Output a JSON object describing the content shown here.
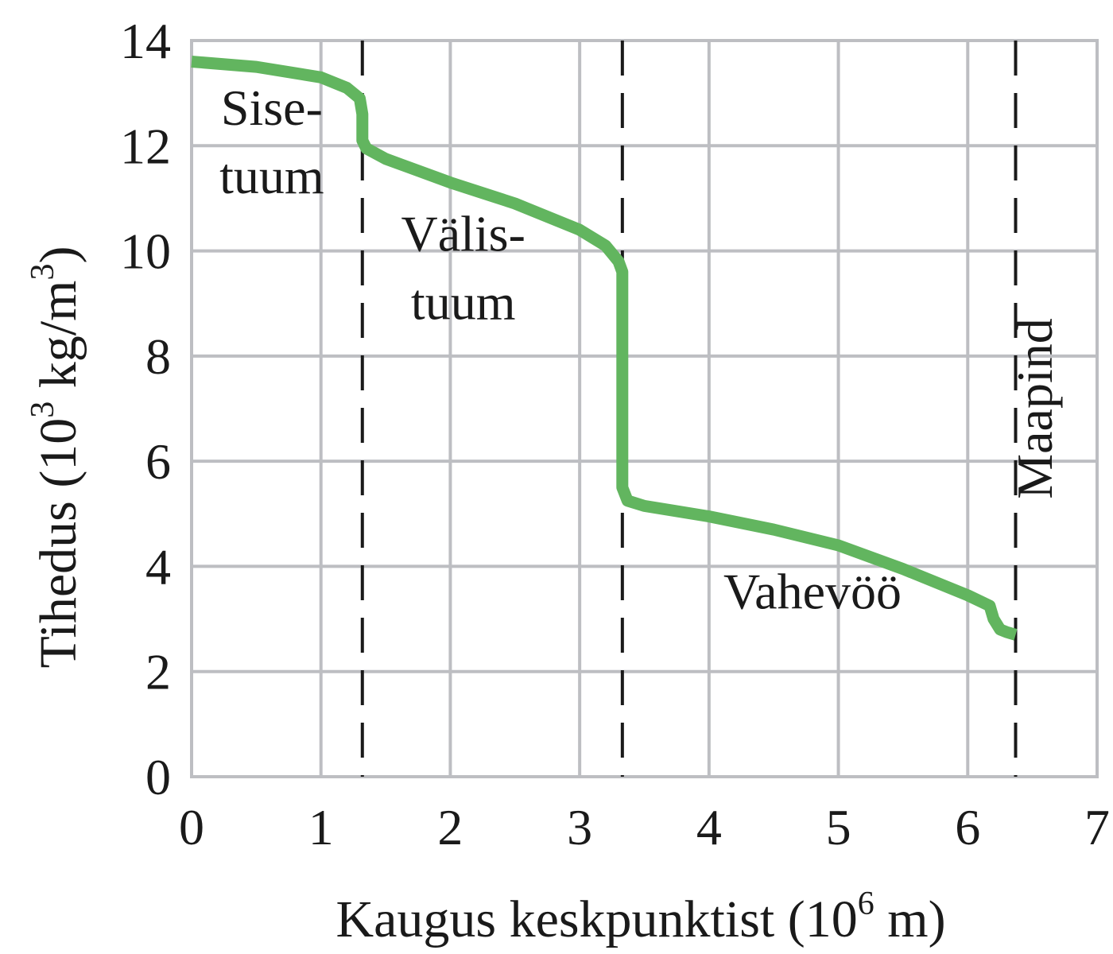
{
  "chart_data": {
    "type": "line",
    "title": "",
    "xlabel": "Kaugus keskpunktist (10^6 m)",
    "xlabel_parts": {
      "main": "Kaugus keskpunktist (10",
      "sup": "6",
      "tail": " m)"
    },
    "ylabel": "Tihedus (10^3 kg/m^3)",
    "ylabel_parts": {
      "main": "Tihedus  (10",
      "sup1": "3",
      "mid": " kg/m",
      "sup2": "3",
      "tail": ")"
    },
    "xlim": [
      0,
      7
    ],
    "ylim": [
      0,
      14
    ],
    "xticks": [
      "0",
      "1",
      "2",
      "3",
      "4",
      "5",
      "6",
      "7"
    ],
    "yticks": [
      "0",
      "2",
      "4",
      "6",
      "8",
      "10",
      "12",
      "14"
    ],
    "grid": true,
    "series": [
      {
        "name": "Tihedus",
        "color": "#62b55f",
        "x": [
          0,
          0.5,
          1.0,
          1.2,
          1.3,
          1.32,
          1.32,
          1.35,
          1.5,
          2.0,
          2.5,
          3.0,
          3.2,
          3.3,
          3.33,
          3.33,
          3.37,
          3.5,
          4.0,
          4.5,
          5.0,
          5.5,
          6.0,
          6.17,
          6.2,
          6.25,
          6.3,
          6.37
        ],
        "values": [
          13.6,
          13.5,
          13.3,
          13.1,
          12.9,
          12.6,
          12.1,
          11.95,
          11.75,
          11.3,
          10.9,
          10.4,
          10.1,
          9.8,
          9.6,
          5.5,
          5.25,
          5.15,
          4.95,
          4.7,
          4.4,
          3.95,
          3.45,
          3.25,
          3.0,
          2.8,
          2.75,
          2.7
        ]
      }
    ],
    "boundaries": [
      {
        "x": 1.32,
        "style": "dashed",
        "color": "#1a1a1a"
      },
      {
        "x": 3.33,
        "style": "dashed",
        "color": "#1a1a1a"
      },
      {
        "x": 6.37,
        "style": "dashed",
        "color": "#1a1a1a"
      }
    ],
    "annotations": [
      {
        "text": "Sise-",
        "x": 0.62,
        "y": 12.4
      },
      {
        "text": "tuum",
        "x": 0.62,
        "y": 11.1
      },
      {
        "text": "Välis-",
        "x": 2.1,
        "y": 10.0
      },
      {
        "text": "tuum",
        "x": 2.1,
        "y": 8.7
      },
      {
        "text": "Vahevöö",
        "x": 4.8,
        "y": 3.2
      },
      {
        "text": "Maapind",
        "x": 6.65,
        "y": 7.0,
        "rotation": -90
      }
    ]
  },
  "colors": {
    "grid": "#bdbec2",
    "curve": "#62b55f",
    "dash": "#1a1a1a",
    "text": "#1a1a1a"
  }
}
